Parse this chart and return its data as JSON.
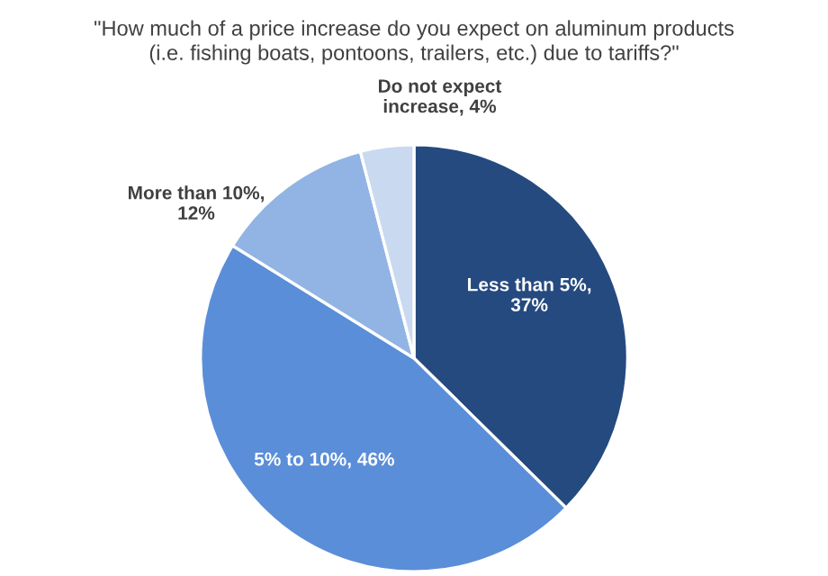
{
  "chart_data": {
    "type": "pie",
    "title": "\"How much of a price increase do you expect on aluminum products\n(i.e. fishing boats, pontoons, trailers, etc.) due to tariffs?\"",
    "categories": [
      null,
      null,
      null,
      null
    ],
    "values": [
      37,
      46,
      12,
      4
    ],
    "value_labels": [
      "Less than 5%,\n37%",
      "5% to 10%, 46%",
      "More than 10%,\n12%",
      "Do not expect\nincrease, 4%"
    ],
    "colors": [
      "#254a7f",
      "#5b8ed8",
      "#91b4e4",
      "#c9d9f0"
    ],
    "legend": false
  }
}
